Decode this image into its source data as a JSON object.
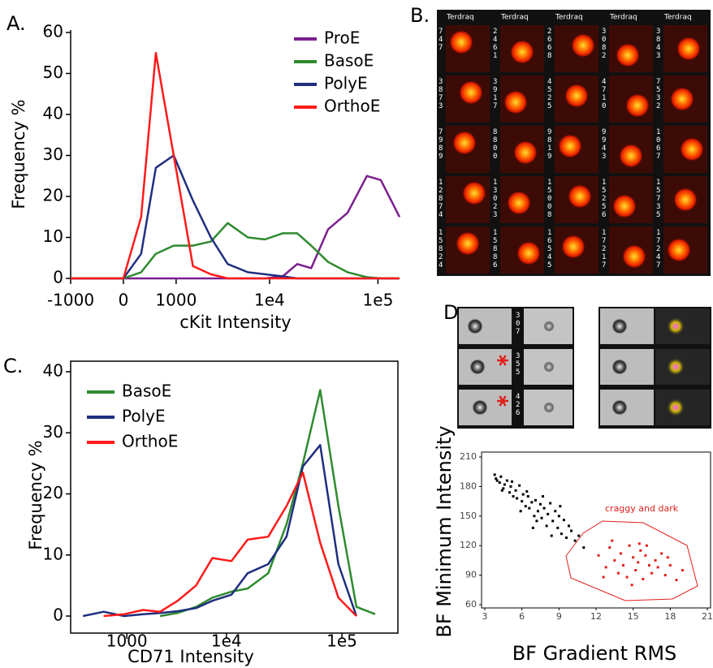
{
  "chart_data": [
    {
      "type": "line",
      "panel": "A.",
      "xlabel": "cKit Intensity",
      "ylabel": "Frequency %",
      "xscale": "biex",
      "x": [
        -1000,
        0,
        224,
        483,
        925,
        1630,
        2590,
        3890,
        6180,
        9030,
        13300,
        18200,
        24500,
        35100,
        52800,
        79300,
        106000,
        157000
      ],
      "xlim": [
        -1000,
        157000
      ],
      "ylim": [
        0,
        60
      ],
      "yticks": [
        0,
        10,
        20,
        30,
        40,
        50,
        60
      ],
      "xticks": [
        -1000,
        0,
        1000,
        {
          "value": 10000,
          "label": "1e4"
        },
        {
          "value": 100000,
          "label": "1e5"
        }
      ],
      "legend": "top-right",
      "box": false,
      "series": [
        {
          "name": "ProE",
          "color": "#7b1f8f",
          "values": [
            0,
            0,
            0,
            0,
            0,
            0,
            0,
            0,
            0,
            0,
            0.5,
            3.5,
            2.5,
            12,
            16,
            25,
            24,
            15
          ]
        },
        {
          "name": "BasoE",
          "color": "#2e8b2e",
          "values": [
            0,
            0,
            1.5,
            6,
            8,
            8,
            9,
            13.5,
            10,
            9.5,
            11,
            11,
            8,
            4,
            1.5,
            0.3,
            0,
            0
          ]
        },
        {
          "name": "PolyE",
          "color": "#1f2f7f",
          "values": [
            0,
            0,
            6,
            27,
            30,
            19,
            10,
            3.5,
            1.5,
            1,
            0.5,
            0,
            0,
            0,
            0,
            0,
            0,
            0
          ]
        },
        {
          "name": "OrthoE",
          "color": "#ff1a1a",
          "values": [
            0,
            0,
            15,
            55,
            30,
            3,
            1,
            0,
            0,
            0,
            0,
            0,
            0,
            0,
            0,
            0,
            0,
            0
          ]
        }
      ]
    },
    {
      "type": "line",
      "panel": "C.",
      "xlabel": "CD71 Intensity",
      "ylabel": "Frequency %",
      "xscale": "biex",
      "x": [
        136,
        452,
        925,
        1560,
        2370,
        3550,
        5300,
        7480,
        11100,
        15400,
        23300,
        33500,
        46400,
        65300,
        93300,
        133000,
        192000
      ],
      "xlim": [
        0,
        300000
      ],
      "ylim": [
        0,
        40
      ],
      "yticks": [
        0,
        10,
        20,
        30,
        40
      ],
      "xticks": [
        1000,
        {
          "value": 10000,
          "label": "1e4"
        },
        {
          "value": 100000,
          "label": "1e5"
        }
      ],
      "legend": "top-left",
      "box": true,
      "series": [
        {
          "name": "BasoE",
          "color": "#2e8b2e",
          "values": [
            null,
            null,
            null,
            null,
            0,
            0.5,
            1.5,
            3,
            4,
            4.5,
            7,
            15,
            25,
            37,
            18,
            1.5,
            0.3
          ]
        },
        {
          "name": "PolyE",
          "color": "#1f2f7f",
          "values": [
            0,
            0.7,
            0,
            0.3,
            0.5,
            0.8,
            1.3,
            2.5,
            3.5,
            7,
            8.5,
            13,
            24.5,
            28,
            8.5,
            0,
            null
          ]
        },
        {
          "name": "OrthoE",
          "color": "#ff1a1a",
          "values": [
            null,
            0,
            0.3,
            1,
            0.7,
            2.5,
            5,
            9.5,
            9,
            12.5,
            13,
            18,
            23.5,
            12,
            3,
            0,
            null
          ]
        }
      ]
    },
    {
      "type": "scatter",
      "panel": "D.",
      "xlabel": "BF Gradient RMS",
      "ylabel": "BF Minimum Intensity",
      "annotation": "craggy and dark",
      "xlim": [
        3,
        21
      ],
      "ylim": [
        60,
        210
      ],
      "xticks": [
        3,
        6,
        9,
        12,
        15,
        18,
        21
      ],
      "yticks": [
        60,
        90,
        120,
        150,
        180,
        210
      ],
      "series": [
        {
          "color": "#000000",
          "x": [
            3.8,
            4.0,
            4.2,
            4.3,
            4.5,
            4.6,
            4.8,
            5.0,
            5.1,
            5.3,
            5.5,
            5.6,
            5.8,
            6.0,
            6.1,
            6.3,
            6.5,
            6.6,
            6.8,
            7.0,
            7.1,
            7.3,
            7.5,
            7.6,
            7.8,
            8.0,
            8.1,
            8.3,
            8.5,
            8.7,
            8.9,
            9.0,
            9.2,
            9.4,
            9.6,
            9.8,
            10.0,
            10.3,
            10.6,
            11.0,
            5.2,
            6.4,
            7.2,
            4.4,
            5.9,
            6.9,
            7.7,
            8.4,
            9.1,
            3.9
          ],
          "y": [
            192,
            186,
            184,
            190,
            178,
            182,
            186,
            174,
            180,
            170,
            176,
            168,
            181,
            165,
            172,
            160,
            170,
            158,
            164,
            150,
            166,
            155,
            162,
            148,
            158,
            140,
            152,
            163,
            145,
            155,
            138,
            150,
            132,
            146,
            128,
            140,
            135,
            125,
            130,
            118,
            185,
            175,
            145,
            176,
            155,
            138,
            170,
            130,
            160,
            188
          ]
        },
        {
          "color": "#e0201c",
          "x": [
            12.2,
            12.8,
            13.1,
            13.5,
            13.8,
            14.0,
            14.2,
            14.5,
            14.7,
            15.0,
            15.2,
            15.4,
            15.6,
            15.8,
            16.0,
            16.3,
            16.5,
            16.8,
            17.0,
            17.3,
            17.6,
            18.0,
            18.5,
            19.0,
            13.3,
            14.9,
            16.1,
            17.8,
            12.6,
            15.5
          ],
          "y": [
            110,
            98,
            118,
            105,
            92,
            112,
            100,
            88,
            120,
            108,
            95,
            103,
            115,
            86,
            110,
            100,
            92,
            105,
            98,
            112,
            90,
            100,
            85,
            95,
            125,
            80,
            120,
            108,
            88,
            122
          ]
        }
      ]
    }
  ],
  "panel_b": {
    "panel": "B.",
    "headers": [
      "Terdraq",
      "Terdraq",
      "Terdraq",
      "Terdraq",
      "Terdraq"
    ],
    "ids": [
      [
        "747",
        "3873",
        "7989",
        "12874",
        "15824"
      ],
      [
        "2461",
        "3917",
        "8800",
        "13023",
        "15886"
      ],
      [
        "2668",
        "4525",
        "9819",
        "15008",
        "16545"
      ],
      [
        "3082",
        "4710",
        "9943",
        "15256",
        "17217"
      ],
      [
        "3843",
        "7532",
        "1067",
        "15735",
        "17247"
      ]
    ]
  },
  "panel_d_images": {
    "ids": [
      "307",
      "355",
      "426"
    ]
  }
}
